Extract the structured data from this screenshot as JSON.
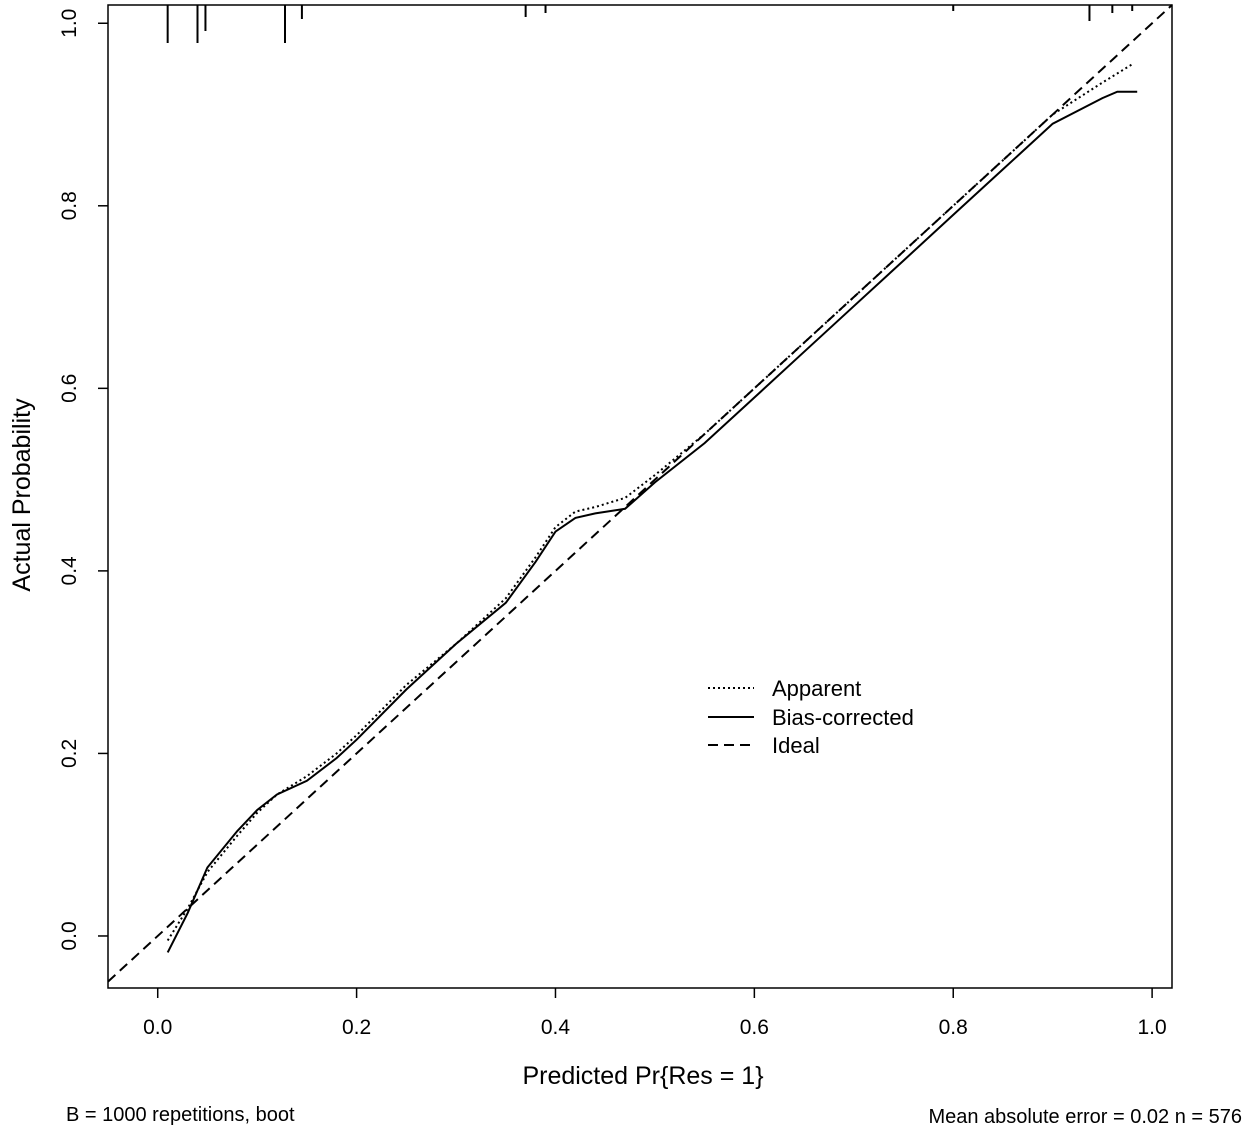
{
  "chart_data": {
    "type": "line",
    "xlabel": "Predicted Pr{Res = 1}",
    "ylabel": "Actual Probability",
    "xlim": [
      -0.05,
      1.02
    ],
    "ylim": [
      -0.057,
      1.02
    ],
    "x_ticks": [
      "0.0",
      "0.2",
      "0.4",
      "0.6",
      "0.8",
      "1.0"
    ],
    "y_ticks": [
      "0.0",
      "0.2",
      "0.4",
      "0.6",
      "0.8",
      "1.0"
    ],
    "grid": false,
    "legend_position": "center-right",
    "series": [
      {
        "name": "Apparent",
        "style": "dotted",
        "x": [
          0.01,
          0.03,
          0.05,
          0.08,
          0.1,
          0.12,
          0.15,
          0.18,
          0.2,
          0.25,
          0.3,
          0.35,
          0.38,
          0.4,
          0.42,
          0.44,
          0.47,
          0.5,
          0.55,
          0.6,
          0.65,
          0.7,
          0.75,
          0.8,
          0.85,
          0.9,
          0.95,
          0.98
        ],
        "y": [
          -0.005,
          0.03,
          0.07,
          0.11,
          0.135,
          0.155,
          0.175,
          0.2,
          0.22,
          0.275,
          0.32,
          0.37,
          0.415,
          0.448,
          0.465,
          0.47,
          0.48,
          0.505,
          0.55,
          0.6,
          0.65,
          0.7,
          0.75,
          0.8,
          0.85,
          0.9,
          0.935,
          0.955
        ]
      },
      {
        "name": "Bias-corrected",
        "style": "solid",
        "x": [
          0.01,
          0.03,
          0.05,
          0.08,
          0.1,
          0.12,
          0.15,
          0.18,
          0.2,
          0.25,
          0.3,
          0.35,
          0.38,
          0.4,
          0.42,
          0.44,
          0.47,
          0.5,
          0.55,
          0.6,
          0.65,
          0.7,
          0.75,
          0.8,
          0.85,
          0.9,
          0.95,
          0.965,
          0.975,
          0.985
        ],
        "y": [
          -0.018,
          0.025,
          0.075,
          0.115,
          0.138,
          0.155,
          0.17,
          0.195,
          0.215,
          0.27,
          0.32,
          0.365,
          0.41,
          0.443,
          0.458,
          0.463,
          0.468,
          0.497,
          0.54,
          0.59,
          0.64,
          0.69,
          0.74,
          0.79,
          0.84,
          0.89,
          0.918,
          0.925,
          0.925,
          0.925
        ]
      },
      {
        "name": "Ideal",
        "style": "dashed",
        "x": [
          -0.05,
          1.02
        ],
        "y": [
          -0.05,
          1.02
        ]
      }
    ],
    "rug_x": [
      0.01,
      0.04,
      0.048,
      0.128,
      0.145,
      0.37,
      0.39,
      0.8,
      0.937,
      0.96,
      0.98
    ]
  },
  "legend": {
    "apparent": "Apparent",
    "bias_corrected": "Bias-corrected",
    "ideal": "Ideal"
  },
  "footer": {
    "left": "B = 1000 repetitions, boot",
    "right": "Mean absolute error = 0.02 n = 576"
  }
}
